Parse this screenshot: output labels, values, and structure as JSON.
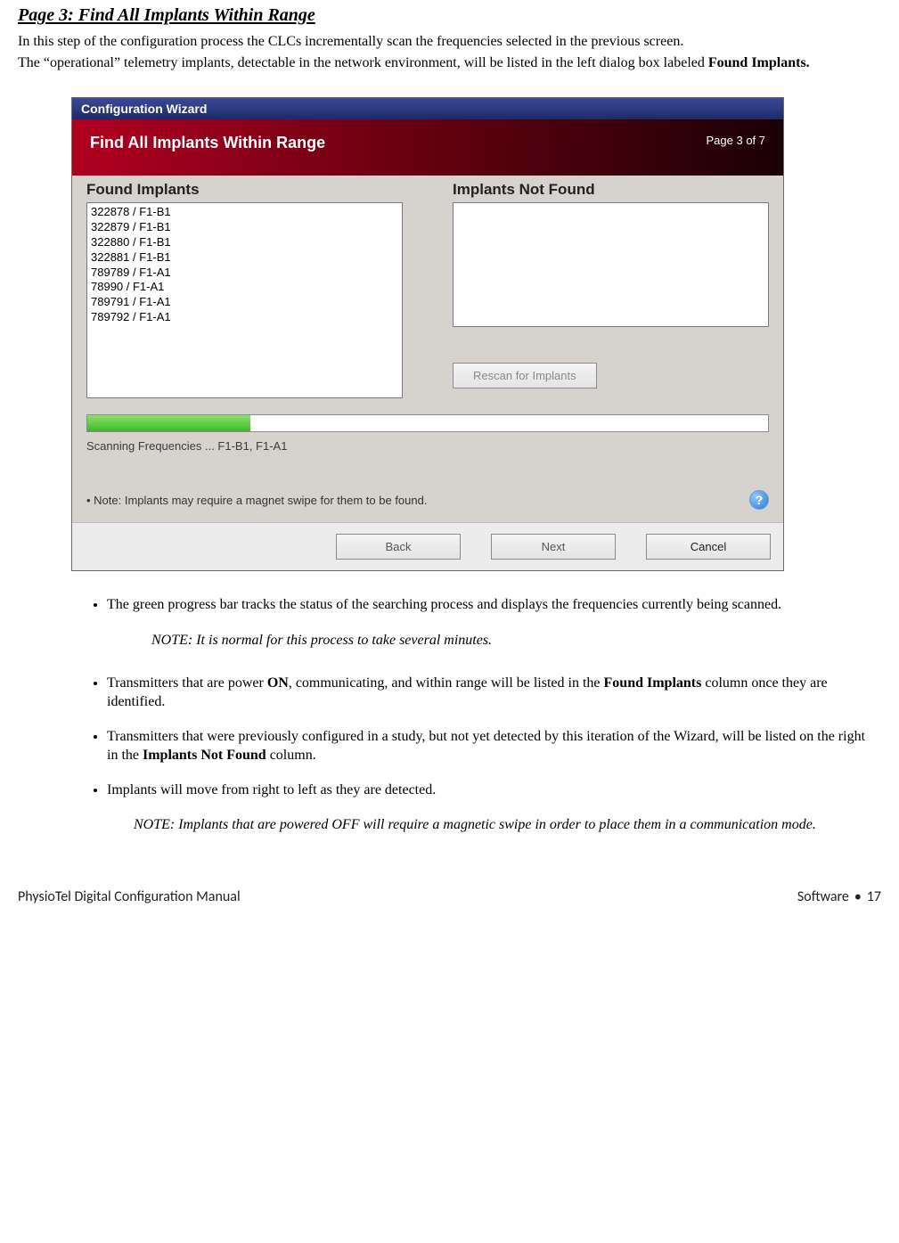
{
  "heading": "Page 3: Find All Implants Within Range",
  "intro_line1": "In this step of the configuration process the CLCs incrementally scan the frequencies selected in the previous screen.",
  "intro_line2_a": "The “operational” telemetry implants, detectable in the network environment, will be listed in the left dialog box labeled ",
  "intro_line2_bold": "Found Implants.",
  "wizard": {
    "titlebar": "Configuration Wizard",
    "ribbon_title": "Find All Implants Within Range",
    "page_of": "Page 3 of 7",
    "found_heading": "Found Implants",
    "notfound_heading": "Implants Not Found",
    "found_items": [
      "322878 / F1-B1",
      "322879 / F1-B1",
      "322880 / F1-B1",
      "322881 / F1-B1",
      "789789 / F1-A1",
      "78990 / F1-A1",
      "789791 / F1-A1",
      "789792 / F1-A1"
    ],
    "rescan_label": "Rescan for Implants",
    "progress_pct": 24,
    "scan_label": "Scanning Frequencies   ...   F1-B1, F1-A1",
    "note": "• Note: Implants may require a magnet swipe for them to be found.",
    "help_glyph": "?",
    "back": "Back",
    "next": "Next",
    "cancel": "Cancel"
  },
  "bullets": {
    "b1": "The green progress bar tracks the status of the searching process and displays the frequencies currently being scanned.",
    "note1": "NOTE: It is normal for this process to take several minutes.",
    "b2_a": "Transmitters that are power ",
    "b2_on": "ON",
    "b2_b": ", communicating, and within range will be listed in the ",
    "b2_found": "Found Implants",
    "b2_c": " column once they are identified.",
    "b3_a": "Transmitters that were previously configured in a study, but not yet detected by this iteration of the Wizard, will be listed on the right in the ",
    "b3_bold": "Implants Not Found",
    "b3_b": " column.",
    "b4": "Implants will move from right to left as they are detected.",
    "note2": "NOTE: Implants that are powered OFF will require a magnetic swipe in order to place them in a communication mode."
  },
  "footer": {
    "left": "PhysioTel Digital Configuration Manual",
    "right_a": "Software",
    "right_b": "17"
  },
  "colors": {
    "ribbon_start": "#b00020",
    "ribbon_end": "#1a0005",
    "progress": "#3fb729",
    "panel_bg": "#d6d3ce"
  }
}
